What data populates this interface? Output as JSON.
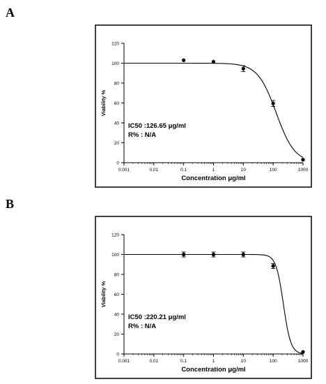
{
  "chart_data": [
    {
      "panel_label": "A",
      "type": "scatter",
      "xlabel": "Concentration μg/ml",
      "ylabel": "Viability %",
      "x_scale": "log",
      "xlim": [
        0.001,
        1000
      ],
      "ylim": [
        0,
        120
      ],
      "x_ticks": [
        0.001,
        0.01,
        0.1,
        1,
        10,
        100,
        1000
      ],
      "x_tick_labels": [
        "0.001",
        "0.01",
        "0.1",
        "1",
        "10",
        "100",
        "1000"
      ],
      "y_ticks": [
        0,
        20,
        40,
        60,
        80,
        100,
        120
      ],
      "y_tick_labels": [
        "0",
        "20",
        "40",
        "60",
        "80",
        "100",
        "120"
      ],
      "points": [
        {
          "x": 0.1,
          "y": 103,
          "err": 0
        },
        {
          "x": 1,
          "y": 101.5,
          "err": 0
        },
        {
          "x": 10,
          "y": 94.5,
          "err": 3
        },
        {
          "x": 100,
          "y": 59.5,
          "err": 3
        },
        {
          "x": 1000,
          "y": 3,
          "err": 0
        }
      ],
      "fit": {
        "top": 100,
        "ic50": 126.65,
        "hill": 1.4
      },
      "annotations": [
        "IC50 :126.65 μg/ml",
        "R% : N/A"
      ],
      "grid": false
    },
    {
      "panel_label": "B",
      "type": "scatter",
      "xlabel": "Concentration μg/ml",
      "ylabel": "Viability %",
      "x_scale": "log",
      "xlim": [
        0.001,
        1000
      ],
      "ylim": [
        0,
        120
      ],
      "x_ticks": [
        0.001,
        0.01,
        0.1,
        1,
        10,
        100,
        1000
      ],
      "x_tick_labels": [
        "0.001",
        "0.01",
        "0.1",
        "1",
        "10",
        "100",
        "1000"
      ],
      "y_ticks": [
        0,
        20,
        40,
        60,
        80,
        100,
        120
      ],
      "y_tick_labels": [
        "0",
        "20",
        "40",
        "60",
        "80",
        "100",
        "120"
      ],
      "points": [
        {
          "x": 0.1,
          "y": 100,
          "err": 2.5
        },
        {
          "x": 1,
          "y": 100,
          "err": 2.5
        },
        {
          "x": 10,
          "y": 100,
          "err": 2.5
        },
        {
          "x": 100,
          "y": 88.5,
          "err": 2.5
        },
        {
          "x": 1000,
          "y": 2,
          "err": 0
        }
      ],
      "fit": {
        "top": 100,
        "ic50": 220.21,
        "hill": 3.5
      },
      "annotations": [
        "IC50 :220.21 μg/ml",
        "R% : N/A"
      ],
      "grid": false
    }
  ]
}
